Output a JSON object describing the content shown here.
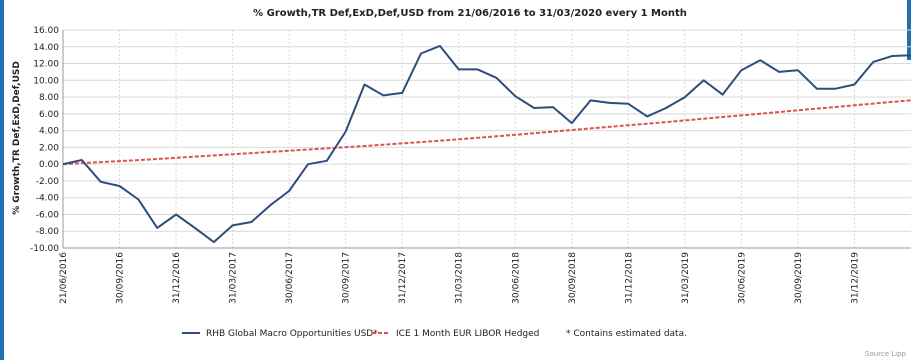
{
  "chart_data": {
    "type": "line",
    "title": "% Growth,TR Def,ExD,Def,USD from 21/06/2016 to 31/03/2020 every 1 Month",
    "xlabel": "",
    "ylabel": "% Growth,TR Def,ExD,Def,USD",
    "ylim": [
      -10,
      16
    ],
    "yticks": [
      "16.00",
      "14.00",
      "12.00",
      "10.00",
      "8.00",
      "6.00",
      "4.00",
      "2.00",
      "0.00",
      "-2.00",
      "-4.00",
      "-6.00",
      "-8.00",
      "-10.00"
    ],
    "xticks": [
      "21/06/2016",
      "30/09/2016",
      "31/12/2016",
      "31/03/2017",
      "30/06/2017",
      "30/09/2017",
      "31/12/2017",
      "31/03/2018",
      "30/06/2018",
      "30/09/2018",
      "31/12/2018",
      "31/03/2019",
      "30/06/2019",
      "30/09/2019",
      "31/12/2019"
    ],
    "x": [
      "21/06/2016",
      "31/07/2016",
      "31/08/2016",
      "30/09/2016",
      "31/10/2016",
      "30/11/2016",
      "31/12/2016",
      "31/01/2017",
      "28/02/2017",
      "31/03/2017",
      "30/04/2017",
      "31/05/2017",
      "30/06/2017",
      "31/07/2017",
      "31/08/2017",
      "30/09/2017",
      "31/10/2017",
      "30/11/2017",
      "31/12/2017",
      "31/01/2018",
      "28/02/2018",
      "31/03/2018",
      "30/04/2018",
      "31/05/2018",
      "30/06/2018",
      "31/07/2018",
      "31/08/2018",
      "30/09/2018",
      "31/10/2018",
      "30/11/2018",
      "31/12/2018",
      "31/01/2019",
      "28/02/2019",
      "31/03/2019",
      "30/04/2019",
      "31/05/2019",
      "30/06/2019",
      "31/07/2019",
      "31/08/2019",
      "30/09/2019",
      "31/10/2019",
      "30/11/2019",
      "31/12/2019",
      "31/01/2020",
      "29/02/2020",
      "31/03/2020"
    ],
    "series": [
      {
        "name": "RHB Global Macro Opportunities USD*",
        "color": "#2e4d7b",
        "style": "solid",
        "values": [
          0.0,
          0.5,
          -2.1,
          -2.6,
          -4.2,
          -7.6,
          -6.0,
          -7.6,
          -9.3,
          -7.3,
          -6.9,
          -4.9,
          -3.2,
          0.0,
          0.4,
          3.9,
          9.5,
          8.2,
          8.5,
          13.2,
          14.1,
          11.3,
          11.3,
          10.3,
          8.1,
          6.7,
          6.8,
          4.9,
          7.6,
          7.3,
          7.2,
          5.7,
          6.7,
          8.0,
          10.0,
          8.3,
          11.2,
          12.4,
          11.0,
          11.2,
          9.0,
          9.0,
          9.5,
          12.2,
          12.9,
          13.0
        ]
      },
      {
        "name": "ICE 1 Month EUR LIBOR Hedged",
        "color": "#d9534f",
        "style": "dashed",
        "values": [
          0.0,
          0.12,
          0.24,
          0.36,
          0.48,
          0.62,
          0.76,
          0.9,
          1.04,
          1.18,
          1.32,
          1.46,
          1.6,
          1.74,
          1.88,
          2.02,
          2.17,
          2.32,
          2.47,
          2.63,
          2.8,
          2.97,
          3.14,
          3.32,
          3.5,
          3.69,
          3.88,
          4.07,
          4.26,
          4.45,
          4.64,
          4.83,
          5.02,
          5.22,
          5.42,
          5.62,
          5.82,
          6.02,
          6.22,
          6.42,
          6.62,
          6.82,
          7.02,
          7.22,
          7.42,
          7.62
        ]
      }
    ],
    "grid": true,
    "legend_position": "bottom",
    "legend_note": "* Contains estimated data.",
    "source": "Source Lipp"
  }
}
